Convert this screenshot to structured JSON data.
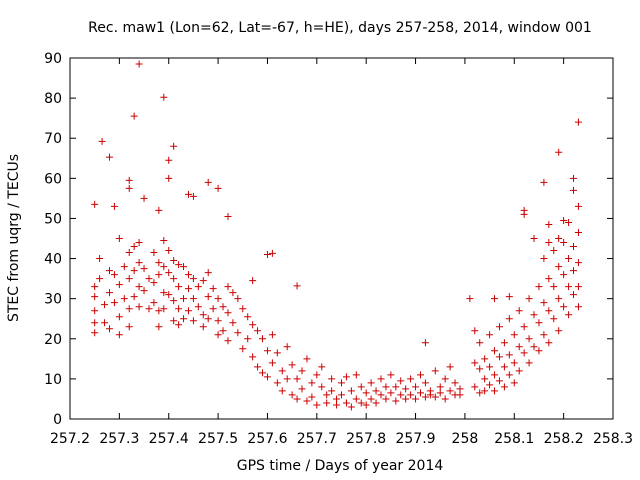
{
  "chart_data": {
    "type": "scatter",
    "title": "Rec. maw1 (Lon=62, Lat=-67, h=HE), days 257-258, 2014, window 001",
    "xlabel": "GPS time / Days of year 2014",
    "ylabel": "STEC from uqrg / TECUs",
    "xlim": [
      257.2,
      258.3
    ],
    "ylim": [
      0,
      90
    ],
    "xticks": [
      257.2,
      257.3,
      257.4,
      257.5,
      257.6,
      257.7,
      257.8,
      257.9,
      258,
      258.1,
      258.2,
      258.3
    ],
    "xtick_labels": [
      "257.2",
      "257.3",
      "257.4",
      "257.5",
      "257.6",
      "257.7",
      "257.8",
      "257.9",
      "258",
      "258.1",
      "258.2",
      "258.3"
    ],
    "yticks": [
      0,
      10,
      20,
      30,
      40,
      50,
      60,
      70,
      80,
      90
    ],
    "ytick_labels": [
      "0",
      "10",
      "20",
      "30",
      "40",
      "50",
      "60",
      "70",
      "80",
      "90"
    ],
    "marker": "plus",
    "color": "#cc0000",
    "points": [
      [
        257.25,
        53.5
      ],
      [
        257.265,
        69.2
      ],
      [
        257.28,
        65.3
      ],
      [
        257.29,
        53
      ],
      [
        257.3,
        45
      ],
      [
        257.32,
        59.5
      ],
      [
        257.32,
        57.5
      ],
      [
        257.33,
        75.5
      ],
      [
        257.34,
        88.5
      ],
      [
        257.35,
        55
      ],
      [
        257.39,
        80.2
      ],
      [
        257.4,
        64.5
      ],
      [
        257.4,
        60
      ],
      [
        257.41,
        68
      ],
      [
        257.38,
        52
      ],
      [
        257.44,
        56
      ],
      [
        257.45,
        55.5
      ],
      [
        257.48,
        59
      ],
      [
        257.5,
        57.5
      ],
      [
        257.52,
        50.5
      ],
      [
        257.57,
        34.5
      ],
      [
        257.6,
        41
      ],
      [
        257.61,
        41.3
      ],
      [
        257.66,
        33.2
      ],
      [
        257.92,
        19
      ],
      [
        258.01,
        30
      ],
      [
        258.06,
        30
      ],
      [
        258.09,
        30.5
      ],
      [
        258.12,
        52
      ],
      [
        258.12,
        51
      ],
      [
        258.16,
        59
      ],
      [
        258.19,
        66.5
      ],
      [
        258.22,
        60
      ],
      [
        258.22,
        57
      ],
      [
        258.23,
        74
      ],
      [
        258.23,
        53
      ],
      [
        258.21,
        49
      ],
      [
        258.2,
        49.5
      ],
      [
        258.17,
        48.5
      ],
      [
        257.25,
        33
      ],
      [
        257.25,
        30.5
      ],
      [
        257.25,
        27
      ],
      [
        257.25,
        24
      ],
      [
        257.25,
        21.5
      ],
      [
        257.26,
        40
      ],
      [
        257.26,
        35
      ],
      [
        257.27,
        28.5
      ],
      [
        257.27,
        24
      ],
      [
        257.28,
        37
      ],
      [
        257.28,
        31.5
      ],
      [
        257.28,
        22.5
      ],
      [
        257.29,
        36
      ],
      [
        257.29,
        29
      ],
      [
        257.3,
        33.5
      ],
      [
        257.3,
        25.5
      ],
      [
        257.3,
        21
      ],
      [
        257.31,
        38
      ],
      [
        257.31,
        30
      ],
      [
        257.32,
        41.5
      ],
      [
        257.32,
        35
      ],
      [
        257.32,
        27.5
      ],
      [
        257.32,
        23
      ],
      [
        257.33,
        43
      ],
      [
        257.33,
        37
      ],
      [
        257.33,
        30.5
      ],
      [
        257.34,
        44
      ],
      [
        257.34,
        39
      ],
      [
        257.34,
        33
      ],
      [
        257.34,
        28
      ],
      [
        257.35,
        37.5
      ],
      [
        257.35,
        32
      ],
      [
        257.36,
        35
      ],
      [
        257.36,
        27.5
      ],
      [
        257.37,
        41.5
      ],
      [
        257.37,
        34
      ],
      [
        257.37,
        29
      ],
      [
        257.38,
        39
      ],
      [
        257.38,
        36
      ],
      [
        257.38,
        27
      ],
      [
        257.38,
        23
      ],
      [
        257.39,
        44.5
      ],
      [
        257.39,
        38
      ],
      [
        257.39,
        31.5
      ],
      [
        257.39,
        27.5
      ],
      [
        257.4,
        42
      ],
      [
        257.4,
        36.5
      ],
      [
        257.4,
        31
      ],
      [
        257.41,
        39.5
      ],
      [
        257.41,
        35
      ],
      [
        257.41,
        29.5
      ],
      [
        257.41,
        24.5
      ],
      [
        257.42,
        38.5
      ],
      [
        257.42,
        33
      ],
      [
        257.42,
        27.5
      ],
      [
        257.42,
        23.5
      ],
      [
        257.43,
        38
      ],
      [
        257.43,
        30
      ],
      [
        257.43,
        25
      ],
      [
        257.44,
        36
      ],
      [
        257.44,
        32.5
      ],
      [
        257.44,
        27
      ],
      [
        257.45,
        35
      ],
      [
        257.45,
        30
      ],
      [
        257.45,
        24.5
      ],
      [
        257.46,
        33
      ],
      [
        257.46,
        28
      ],
      [
        257.47,
        34.5
      ],
      [
        257.47,
        26
      ],
      [
        257.47,
        23
      ],
      [
        257.48,
        36.5
      ],
      [
        257.48,
        30.5
      ],
      [
        257.48,
        25
      ],
      [
        257.49,
        32.5
      ],
      [
        257.49,
        27.5
      ],
      [
        257.5,
        30
      ],
      [
        257.5,
        24.5
      ],
      [
        257.5,
        21
      ],
      [
        257.51,
        28
      ],
      [
        257.51,
        22
      ],
      [
        257.52,
        33
      ],
      [
        257.52,
        26.5
      ],
      [
        257.52,
        19.5
      ],
      [
        257.53,
        31.5
      ],
      [
        257.53,
        24
      ],
      [
        257.54,
        30
      ],
      [
        257.54,
        21.5
      ],
      [
        257.55,
        27.5
      ],
      [
        257.55,
        17.5
      ],
      [
        257.56,
        25.5
      ],
      [
        257.56,
        20
      ],
      [
        257.57,
        23.5
      ],
      [
        257.57,
        15.5
      ],
      [
        257.58,
        22
      ],
      [
        257.58,
        13
      ],
      [
        257.59,
        20
      ],
      [
        257.59,
        11.5
      ],
      [
        257.6,
        17
      ],
      [
        257.6,
        10.5
      ],
      [
        257.61,
        21
      ],
      [
        257.61,
        14
      ],
      [
        257.62,
        16.5
      ],
      [
        257.62,
        9
      ],
      [
        257.63,
        12
      ],
      [
        257.63,
        7
      ],
      [
        257.64,
        18
      ],
      [
        257.64,
        10
      ],
      [
        257.65,
        13.5
      ],
      [
        257.65,
        6
      ],
      [
        257.66,
        10
      ],
      [
        257.66,
        5
      ],
      [
        257.67,
        12
      ],
      [
        257.67,
        7.5
      ],
      [
        257.68,
        15
      ],
      [
        257.68,
        4.5
      ],
      [
        257.69,
        9
      ],
      [
        257.69,
        5.5
      ],
      [
        257.7,
        11
      ],
      [
        257.7,
        3.5
      ],
      [
        257.71,
        8
      ],
      [
        257.71,
        13
      ],
      [
        257.72,
        6
      ],
      [
        257.72,
        4
      ],
      [
        257.73,
        10
      ],
      [
        257.73,
        7
      ],
      [
        257.74,
        5
      ],
      [
        257.74,
        3.5
      ],
      [
        257.75,
        9
      ],
      [
        257.75,
        6
      ],
      [
        257.76,
        4
      ],
      [
        257.76,
        10.5
      ],
      [
        257.77,
        7
      ],
      [
        257.77,
        3
      ],
      [
        257.78,
        5
      ],
      [
        257.78,
        11
      ],
      [
        257.79,
        8
      ],
      [
        257.79,
        4
      ],
      [
        257.8,
        6.5
      ],
      [
        257.8,
        3.5
      ],
      [
        257.81,
        9
      ],
      [
        257.81,
        5
      ],
      [
        257.82,
        7
      ],
      [
        257.82,
        4
      ],
      [
        257.83,
        10
      ],
      [
        257.83,
        6
      ],
      [
        257.84,
        8
      ],
      [
        257.84,
        5
      ],
      [
        257.85,
        6.5
      ],
      [
        257.85,
        11
      ],
      [
        257.86,
        4.5
      ],
      [
        257.86,
        8
      ],
      [
        257.87,
        6
      ],
      [
        257.87,
        9.5
      ],
      [
        257.88,
        5
      ],
      [
        257.88,
        7.5
      ],
      [
        257.89,
        6
      ],
      [
        257.89,
        10
      ],
      [
        257.9,
        5
      ],
      [
        257.9,
        8
      ],
      [
        257.91,
        6.5
      ],
      [
        257.91,
        11
      ],
      [
        257.92,
        5.5
      ],
      [
        257.92,
        9
      ],
      [
        257.93,
        7
      ],
      [
        257.93,
        6
      ],
      [
        257.94,
        12
      ],
      [
        257.94,
        5.5
      ],
      [
        257.95,
        8
      ],
      [
        257.95,
        6.5
      ],
      [
        257.96,
        10
      ],
      [
        257.96,
        5
      ],
      [
        257.97,
        7
      ],
      [
        257.97,
        13
      ],
      [
        257.98,
        6
      ],
      [
        257.98,
        9
      ],
      [
        257.99,
        7.5
      ],
      [
        257.99,
        6
      ],
      [
        258.02,
        22
      ],
      [
        258.02,
        14
      ],
      [
        258.02,
        8
      ],
      [
        258.03,
        19
      ],
      [
        258.03,
        12.5
      ],
      [
        258.03,
        6.5
      ],
      [
        258.04,
        15
      ],
      [
        258.04,
        10
      ],
      [
        258.04,
        7
      ],
      [
        258.05,
        21
      ],
      [
        258.05,
        13
      ],
      [
        258.05,
        8.5
      ],
      [
        258.06,
        17
      ],
      [
        258.06,
        11
      ],
      [
        258.06,
        7
      ],
      [
        258.07,
        23
      ],
      [
        258.07,
        15.5
      ],
      [
        258.07,
        9.5
      ],
      [
        258.08,
        19
      ],
      [
        258.08,
        13
      ],
      [
        258.08,
        8
      ],
      [
        258.09,
        25
      ],
      [
        258.09,
        16
      ],
      [
        258.09,
        11
      ],
      [
        258.1,
        21
      ],
      [
        258.1,
        14
      ],
      [
        258.1,
        9
      ],
      [
        258.11,
        27
      ],
      [
        258.11,
        18
      ],
      [
        258.11,
        12
      ],
      [
        258.12,
        23
      ],
      [
        258.12,
        16.5
      ],
      [
        258.13,
        30
      ],
      [
        258.13,
        20
      ],
      [
        258.13,
        14
      ],
      [
        258.14,
        26
      ],
      [
        258.14,
        18
      ],
      [
        258.14,
        45
      ],
      [
        258.15,
        33
      ],
      [
        258.15,
        24
      ],
      [
        258.15,
        17
      ],
      [
        258.16,
        40
      ],
      [
        258.16,
        29
      ],
      [
        258.16,
        21
      ],
      [
        258.17,
        44
      ],
      [
        258.17,
        35
      ],
      [
        258.17,
        27
      ],
      [
        258.17,
        19
      ],
      [
        258.18,
        42
      ],
      [
        258.18,
        33
      ],
      [
        258.18,
        25
      ],
      [
        258.19,
        45
      ],
      [
        258.19,
        38
      ],
      [
        258.19,
        30
      ],
      [
        258.19,
        22
      ],
      [
        258.2,
        44
      ],
      [
        258.2,
        36
      ],
      [
        258.2,
        28
      ],
      [
        258.21,
        40
      ],
      [
        258.21,
        33
      ],
      [
        258.21,
        26
      ],
      [
        258.22,
        43
      ],
      [
        258.22,
        37
      ],
      [
        258.22,
        31
      ],
      [
        258.23,
        46.5
      ],
      [
        258.23,
        39
      ],
      [
        258.23,
        33
      ],
      [
        258.23,
        28
      ]
    ]
  }
}
